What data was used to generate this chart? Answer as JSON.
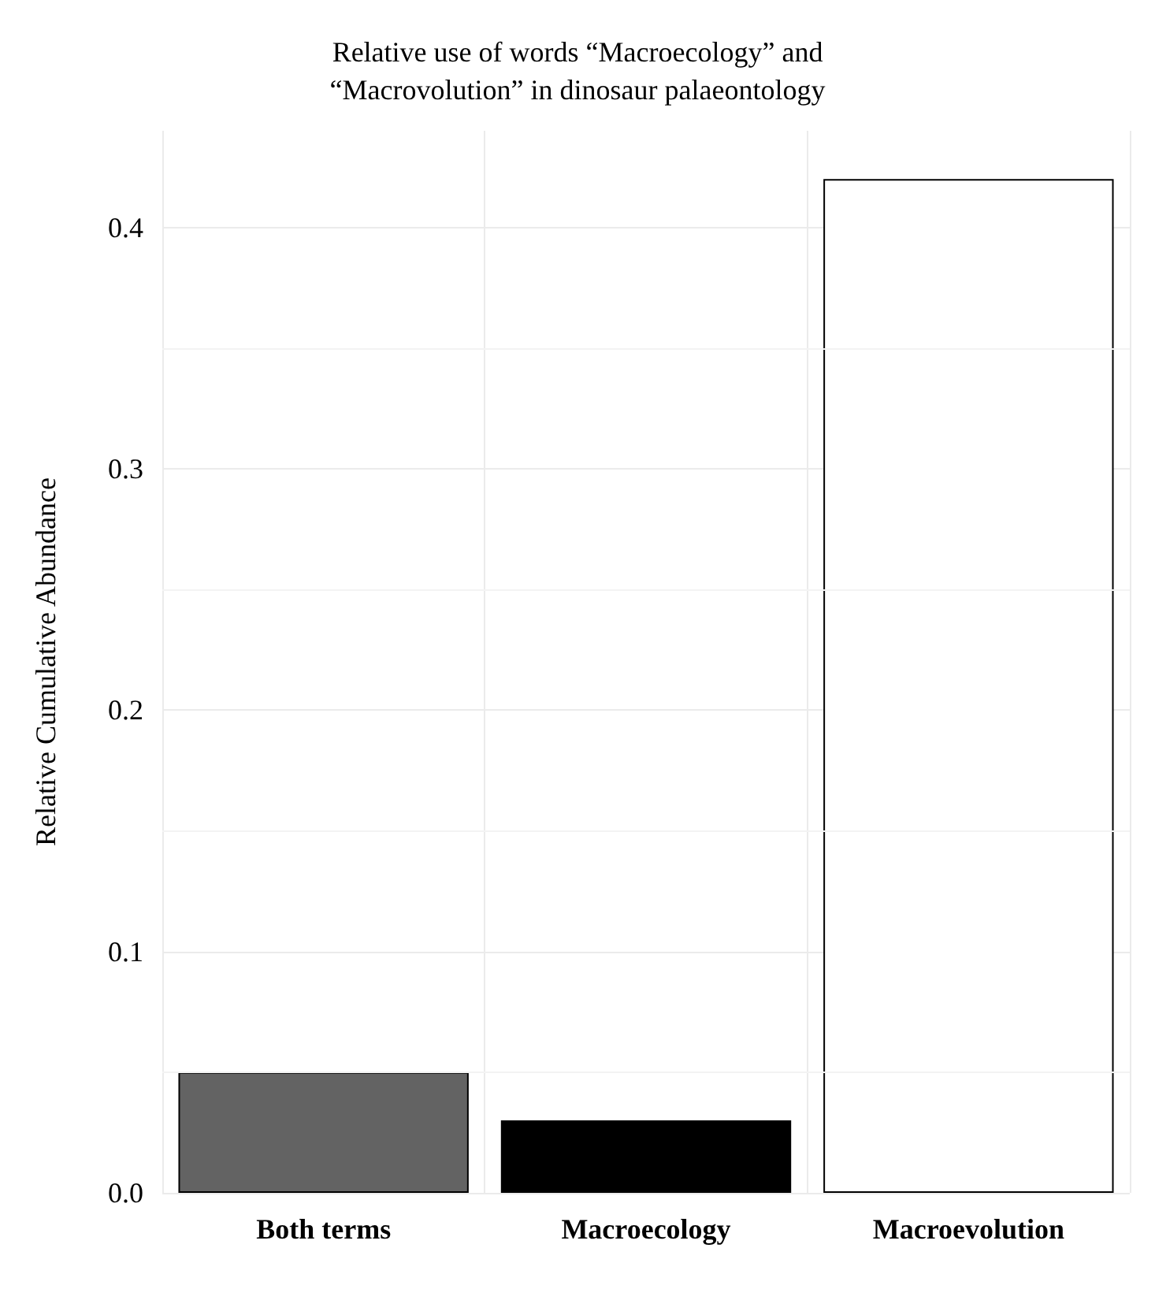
{
  "chart_data": {
    "type": "bar",
    "title": "Relative use of words “Macroecology” and\n“Macrovolution” in dinosaur palaeontology",
    "ylabel": "Relative Cumulative Abundance",
    "categories": [
      "Both terms",
      "Macroecology",
      "Macroevolution"
    ],
    "values": [
      0.05,
      0.03,
      0.42
    ],
    "colors": [
      "#636363",
      "#000000",
      "#ffffff"
    ],
    "ylim": [
      0,
      0.44
    ],
    "yticks": [
      {
        "value": 0,
        "label": "0.0"
      },
      0.1,
      0.2,
      0.3,
      0.4
    ],
    "grid": true
  }
}
